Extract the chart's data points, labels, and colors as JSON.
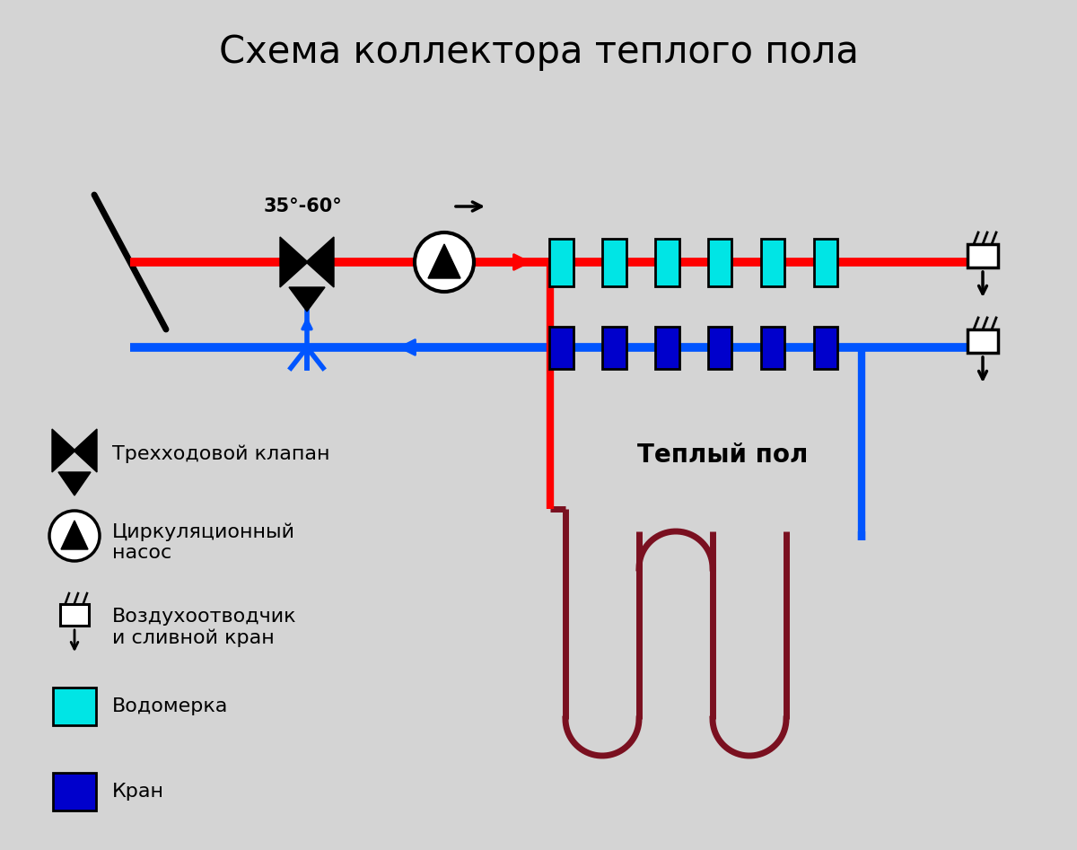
{
  "title": "Схема коллектора теплого пола",
  "bg_color": "#d4d4d4",
  "red_color": "#ff0000",
  "blue_color": "#0055ff",
  "dark_red_color": "#7a1020",
  "cyan_color": "#00e5e5",
  "dark_blue_color": "#0000cc",
  "black_color": "#000000",
  "white_color": "#ffffff",
  "temp_label": "35°-60°",
  "warm_floor_label": "Теплый пол",
  "legend_valve": "Трехходовой клапан",
  "legend_pump": "Циркуляционный\nнасос",
  "legend_vent": "Воздухоотводчик\nи сливной кран",
  "legend_flow": "Водомерка",
  "legend_crane": "Кран"
}
